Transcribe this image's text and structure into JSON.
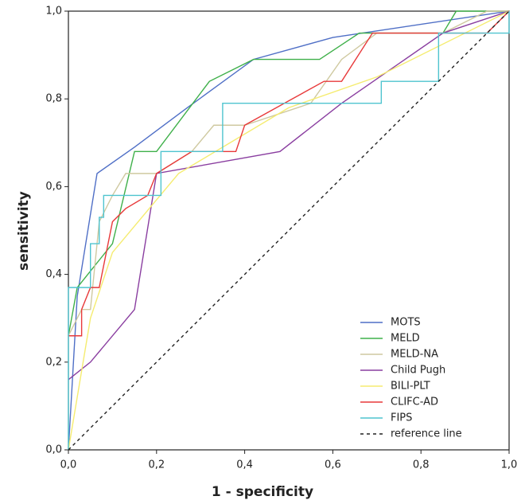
{
  "chart_data": {
    "type": "line",
    "x_label": "1 - specificity",
    "y_label": "sensitivity",
    "xlim": [
      0,
      1
    ],
    "ylim": [
      0,
      1
    ],
    "xticks": [
      {
        "value": 0,
        "label": "0,0"
      },
      {
        "value": 0.2,
        "label": "0,2"
      },
      {
        "value": 0.4,
        "label": "0,4"
      },
      {
        "value": 0.6,
        "label": "0,6"
      },
      {
        "value": 0.8,
        "label": "0,8"
      },
      {
        "value": 1,
        "label": "1,0"
      }
    ],
    "yticks": [
      {
        "value": 0,
        "label": "0,0"
      },
      {
        "value": 0.2,
        "label": "0,2"
      },
      {
        "value": 0.4,
        "label": "0,4"
      },
      {
        "value": 0.6,
        "label": "0,6"
      },
      {
        "value": 0.8,
        "label": "0,8"
      },
      {
        "value": 1,
        "label": "1,0"
      }
    ],
    "legend": "bottom-right",
    "series": [
      {
        "name": "MOTS",
        "color": "#4f6fc6",
        "x": [
          0,
          0.02,
          0.065,
          0.15,
          0.27,
          0.42,
          0.6,
          1
        ],
        "values": [
          0,
          0.35,
          0.63,
          0.69,
          0.78,
          0.89,
          0.94,
          1
        ]
      },
      {
        "name": "MELD",
        "color": "#3fb04a",
        "x": [
          0,
          0.02,
          0.06,
          0.1,
          0.15,
          0.2,
          0.32,
          0.42,
          0.57,
          0.66,
          0.85,
          0.88,
          1
        ],
        "values": [
          0.26,
          0.37,
          0.42,
          0.47,
          0.68,
          0.68,
          0.84,
          0.89,
          0.89,
          0.95,
          0.95,
          1,
          1
        ]
      },
      {
        "name": "MELD-NA",
        "color": "#cfc9a0",
        "x": [
          0,
          0.03,
          0.05,
          0.07,
          0.1,
          0.13,
          0.2,
          0.28,
          0.33,
          0.4,
          0.55,
          0.62,
          0.7,
          0.85,
          0.95,
          1
        ],
        "values": [
          0.26,
          0.32,
          0.32,
          0.52,
          0.58,
          0.63,
          0.63,
          0.68,
          0.74,
          0.74,
          0.79,
          0.89,
          0.95,
          0.95,
          1,
          1
        ]
      },
      {
        "name": "Child Pugh",
        "color": "#8a3ea0",
        "x": [
          0,
          0.05,
          0.15,
          0.2,
          0.48,
          0.62,
          0.85,
          1
        ],
        "values": [
          0.16,
          0.2,
          0.32,
          0.63,
          0.68,
          0.79,
          0.95,
          1
        ]
      },
      {
        "name": "BILI-PLT",
        "color": "#f5ec70",
        "x": [
          0,
          0.05,
          0.1,
          0.25,
          0.5,
          0.7,
          1
        ],
        "values": [
          0,
          0.3,
          0.45,
          0.63,
          0.78,
          0.85,
          1
        ]
      },
      {
        "name": "CLIFC-AD",
        "color": "#e8393a",
        "x": [
          0,
          0.03,
          0.03,
          0.05,
          0.07,
          0.1,
          0.13,
          0.18,
          0.2,
          0.28,
          0.38,
          0.4,
          0.58,
          0.62,
          0.69,
          0.95,
          1
        ],
        "values": [
          0.26,
          0.26,
          0.32,
          0.37,
          0.37,
          0.52,
          0.55,
          0.58,
          0.63,
          0.68,
          0.68,
          0.74,
          0.84,
          0.84,
          0.95,
          0.95,
          1
        ]
      },
      {
        "name": "FIPS",
        "color": "#4fc4cf",
        "x": [
          0,
          0,
          0.05,
          0.05,
          0.07,
          0.07,
          0.08,
          0.08,
          0.21,
          0.21,
          0.35,
          0.35,
          0.71,
          0.71,
          0.84,
          0.84,
          1,
          1
        ],
        "values": [
          0,
          0.37,
          0.37,
          0.47,
          0.47,
          0.53,
          0.53,
          0.58,
          0.58,
          0.68,
          0.68,
          0.79,
          0.79,
          0.84,
          0.84,
          0.95,
          0.95,
          1
        ]
      },
      {
        "name": "reference line",
        "color": "#222222",
        "dashed": true,
        "x": [
          0,
          1
        ],
        "values": [
          0,
          1
        ]
      }
    ]
  }
}
